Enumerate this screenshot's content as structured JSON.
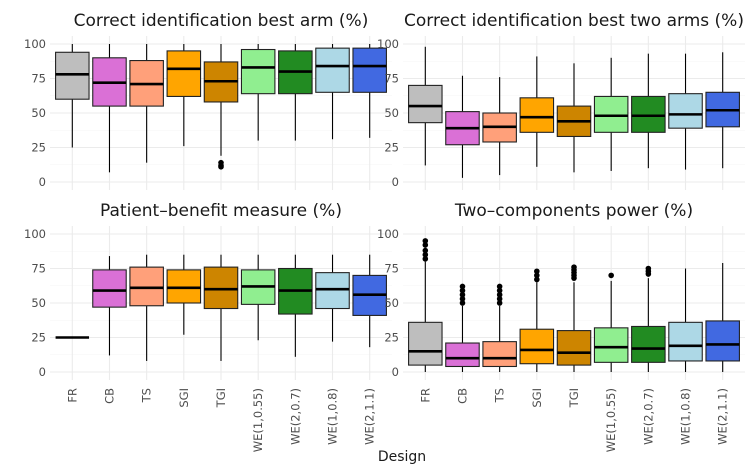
{
  "chart_data": {
    "type": "boxplot",
    "xlabel": "Design",
    "ylim": [
      0,
      100
    ],
    "yticks": [
      0,
      25,
      50,
      75,
      100
    ],
    "categories": [
      "FR",
      "CB",
      "TS",
      "SGI",
      "TGI",
      "WE(1,0.55)",
      "WE(2,0.7)",
      "WE(1,0.8)",
      "WE(2,1.1)"
    ],
    "colors": [
      "#bebebe",
      "#da70d6",
      "#ffa07a",
      "#ffa500",
      "#cd8500",
      "#90ee90",
      "#228b22",
      "#add8e6",
      "#4169e1"
    ],
    "panels": [
      {
        "title": "Correct identification best arm (%)",
        "boxes": [
          {
            "min": 25,
            "q1": 60,
            "median": 78,
            "q3": 94,
            "max": 100,
            "outliers": []
          },
          {
            "min": 7,
            "q1": 55,
            "median": 72,
            "q3": 90,
            "max": 100,
            "outliers": []
          },
          {
            "min": 14,
            "q1": 55,
            "median": 71,
            "q3": 88,
            "max": 100,
            "outliers": []
          },
          {
            "min": 26,
            "q1": 62,
            "median": 82,
            "q3": 95,
            "max": 100,
            "outliers": []
          },
          {
            "min": 19,
            "q1": 58,
            "median": 73,
            "q3": 87,
            "max": 100,
            "outliers": [
              14,
              12,
              11
            ]
          },
          {
            "min": 30,
            "q1": 64,
            "median": 83,
            "q3": 96,
            "max": 100,
            "outliers": []
          },
          {
            "min": 30,
            "q1": 64,
            "median": 80,
            "q3": 95,
            "max": 100,
            "outliers": []
          },
          {
            "min": 31,
            "q1": 65,
            "median": 84,
            "q3": 97,
            "max": 100,
            "outliers": []
          },
          {
            "min": 32,
            "q1": 65,
            "median": 84,
            "q3": 97,
            "max": 100,
            "outliers": []
          }
        ]
      },
      {
        "title": "Correct identification best two arms (%)",
        "boxes": [
          {
            "min": 12,
            "q1": 43,
            "median": 55,
            "q3": 70,
            "max": 98,
            "outliers": []
          },
          {
            "min": 3,
            "q1": 27,
            "median": 39,
            "q3": 51,
            "max": 77,
            "outliers": []
          },
          {
            "min": 5,
            "q1": 29,
            "median": 40,
            "q3": 50,
            "max": 76,
            "outliers": []
          },
          {
            "min": 11,
            "q1": 36,
            "median": 47,
            "q3": 61,
            "max": 91,
            "outliers": []
          },
          {
            "min": 7,
            "q1": 33,
            "median": 44,
            "q3": 55,
            "max": 86,
            "outliers": []
          },
          {
            "min": 8,
            "q1": 36,
            "median": 48,
            "q3": 62,
            "max": 90,
            "outliers": []
          },
          {
            "min": 10,
            "q1": 36,
            "median": 48,
            "q3": 62,
            "max": 93,
            "outliers": []
          },
          {
            "min": 9,
            "q1": 39,
            "median": 49,
            "q3": 64,
            "max": 93,
            "outliers": []
          },
          {
            "min": 10,
            "q1": 40,
            "median": 52,
            "q3": 65,
            "max": 94,
            "outliers": []
          }
        ]
      },
      {
        "title": "Patient–benefit measure (%)",
        "boxes": [
          {
            "min": 25,
            "q1": 25,
            "median": 25,
            "q3": 25,
            "max": 25,
            "outliers": []
          },
          {
            "min": 12,
            "q1": 47,
            "median": 59,
            "q3": 74,
            "max": 84,
            "outliers": []
          },
          {
            "min": 8,
            "q1": 48,
            "median": 61,
            "q3": 76,
            "max": 85,
            "outliers": []
          },
          {
            "min": 27,
            "q1": 50,
            "median": 61,
            "q3": 74,
            "max": 85,
            "outliers": []
          },
          {
            "min": 8,
            "q1": 46,
            "median": 60,
            "q3": 76,
            "max": 85,
            "outliers": []
          },
          {
            "min": 23,
            "q1": 49,
            "median": 62,
            "q3": 74,
            "max": 85,
            "outliers": []
          },
          {
            "min": 11,
            "q1": 42,
            "median": 59,
            "q3": 75,
            "max": 85,
            "outliers": []
          },
          {
            "min": 22,
            "q1": 46,
            "median": 60,
            "q3": 72,
            "max": 85,
            "outliers": []
          },
          {
            "min": 18,
            "q1": 41,
            "median": 56,
            "q3": 70,
            "max": 85,
            "outliers": []
          }
        ]
      },
      {
        "title": "Two–components power (%)",
        "boxes": [
          {
            "min": 0,
            "q1": 5,
            "median": 15,
            "q3": 36,
            "max": 80,
            "outliers": [
              82,
              85,
              88,
              92,
              95
            ]
          },
          {
            "min": 0,
            "q1": 4,
            "median": 10,
            "q3": 21,
            "max": 48,
            "outliers": [
              50,
              53,
              56,
              59,
              62
            ]
          },
          {
            "min": 0,
            "q1": 4,
            "median": 10,
            "q3": 22,
            "max": 48,
            "outliers": [
              50,
              53,
              56,
              59,
              62
            ]
          },
          {
            "min": 0,
            "q1": 6,
            "median": 16,
            "q3": 31,
            "max": 65,
            "outliers": [
              67,
              70,
              73
            ]
          },
          {
            "min": 0,
            "q1": 5,
            "median": 14,
            "q3": 30,
            "max": 65,
            "outliers": [
              68,
              70,
              72,
              74,
              76
            ]
          },
          {
            "min": 0,
            "q1": 7,
            "median": 18,
            "q3": 32,
            "max": 66,
            "outliers": [
              70
            ]
          },
          {
            "min": 0,
            "q1": 7,
            "median": 17,
            "q3": 33,
            "max": 68,
            "outliers": [
              71,
              73,
              75
            ]
          },
          {
            "min": 0,
            "q1": 8,
            "median": 19,
            "q3": 36,
            "max": 75,
            "outliers": []
          },
          {
            "min": 0,
            "q1": 8,
            "median": 20,
            "q3": 37,
            "max": 79,
            "outliers": []
          }
        ]
      }
    ]
  }
}
